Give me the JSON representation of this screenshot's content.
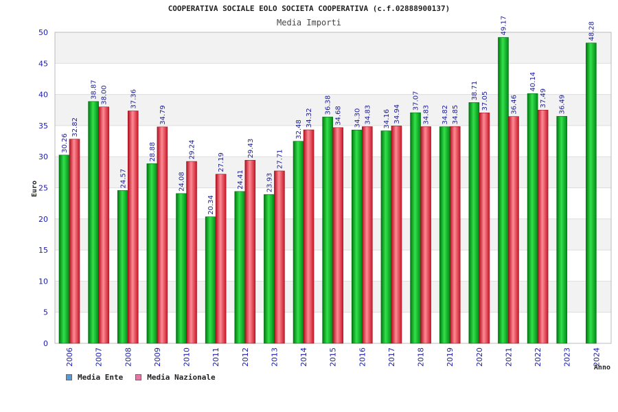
{
  "chart_data": {
    "type": "bar",
    "title": "COOPERATIVA SOCIALE EOLO SOCIETA COOPERATIVA (c.f.02888900137)",
    "subtitle": "Media Importi",
    "xlabel": "Anno",
    "ylabel": "Euro",
    "ylim": [
      0,
      50
    ],
    "yticks": [
      0,
      5,
      10,
      15,
      20,
      25,
      30,
      35,
      40,
      45,
      50
    ],
    "categories": [
      "2006",
      "2007",
      "2008",
      "2009",
      "2010",
      "2011",
      "2012",
      "2013",
      "2014",
      "2015",
      "2016",
      "2017",
      "2018",
      "2019",
      "2020",
      "2021",
      "2022",
      "2023",
      "2024"
    ],
    "series": [
      {
        "name": "Media Ente",
        "color": "#00aa22",
        "legend_color": "#5b9bd5",
        "values": [
          30.26,
          38.87,
          24.57,
          28.88,
          24.08,
          20.34,
          24.41,
          23.93,
          32.48,
          36.38,
          34.3,
          34.16,
          37.07,
          34.82,
          38.71,
          49.17,
          40.14,
          36.49,
          48.28
        ],
        "labels": [
          "30.26",
          "38.87",
          "24.57",
          "28.88",
          "24.08",
          "20.34",
          "24.41",
          "23.93",
          "32.48",
          "36.38",
          "34.30",
          "34.16",
          "37.07",
          "34.82",
          "38.71",
          "49.17",
          "40.14",
          "36.49",
          "48.28"
        ]
      },
      {
        "name": "Media Nazionale",
        "color": "#dd2233",
        "legend_color": "#e377a8",
        "values": [
          32.82,
          38.0,
          37.36,
          34.79,
          29.24,
          27.19,
          29.43,
          27.71,
          34.32,
          34.68,
          34.83,
          34.94,
          34.83,
          34.85,
          37.05,
          36.46,
          37.49,
          null,
          null
        ],
        "labels": [
          "32.82",
          "38.00",
          "37.36",
          "34.79",
          "29.24",
          "27.19",
          "29.43",
          "27.71",
          "34.32",
          "34.68",
          "34.83",
          "34.94",
          "34.83",
          "34.85",
          "37.05",
          "36.46",
          "37.49",
          null,
          null
        ]
      }
    ],
    "grid": true,
    "legend_position": "bottom-left"
  }
}
